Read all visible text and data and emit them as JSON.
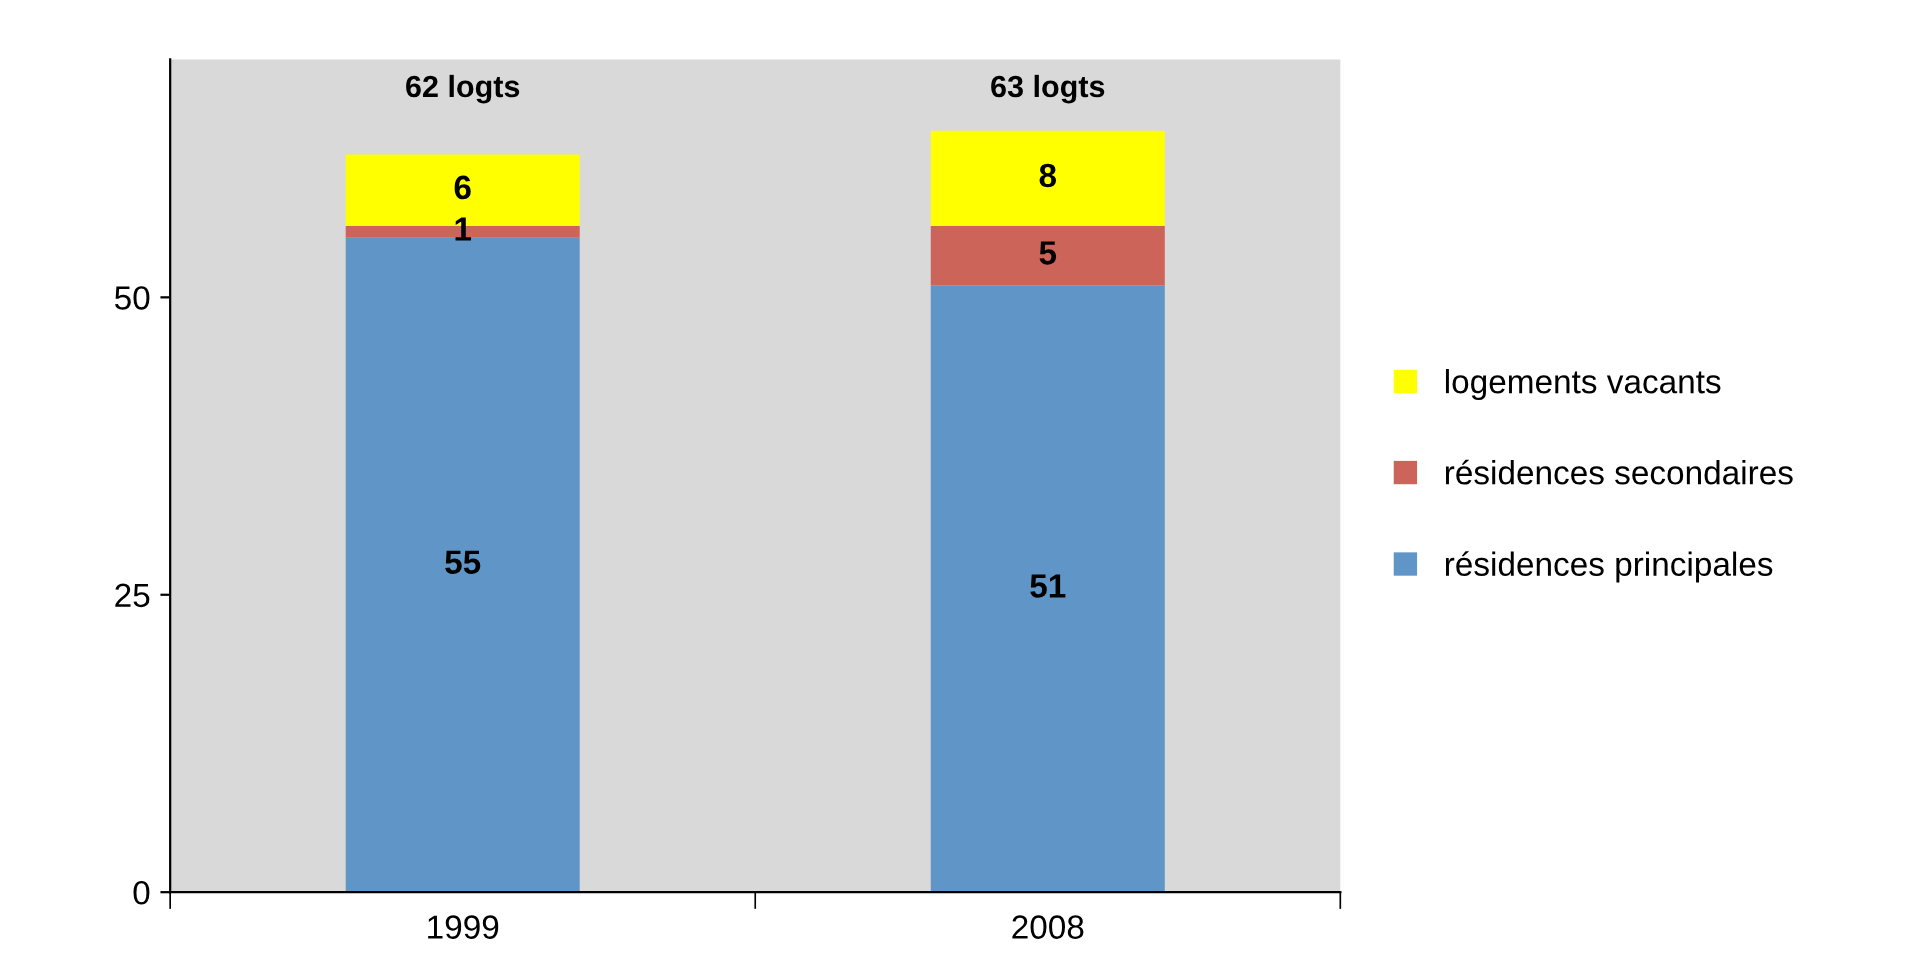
{
  "chart_data": {
    "type": "bar",
    "stacked": true,
    "categories": [
      "1999",
      "2008"
    ],
    "series": [
      {
        "name": "résidences principales",
        "color": "#5f96c7",
        "values": [
          55,
          51
        ]
      },
      {
        "name": "résidences secondaires",
        "color": "#cc6459",
        "values": [
          1,
          5
        ]
      },
      {
        "name": "logements vacants",
        "color": "#ffff00",
        "values": [
          6,
          8
        ]
      }
    ],
    "data_labels": true,
    "totals": [
      "62 logts",
      "63 logts"
    ],
    "ylim": [
      0,
      70
    ],
    "yticks": [
      0,
      25,
      50
    ],
    "grid": false,
    "legend": "right"
  }
}
